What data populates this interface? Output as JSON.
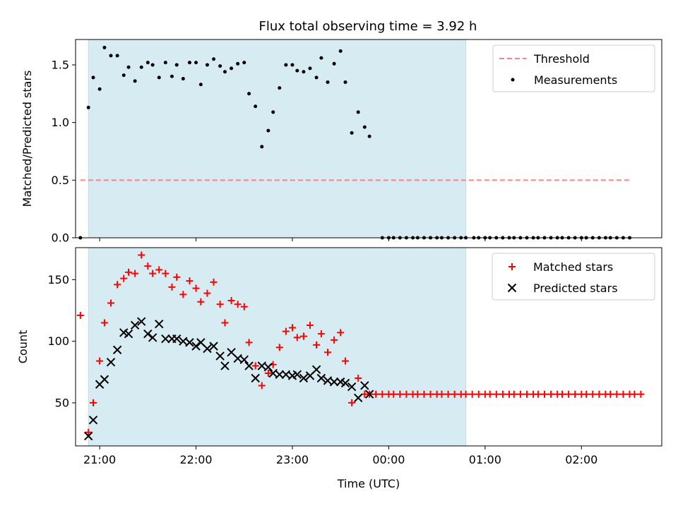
{
  "figure": {
    "title": "Flux total observing time = 3.92 h",
    "colors": {
      "observed_region": "#add8e6",
      "threshold": "#ff7f7f",
      "matched": "#ff0000",
      "predicted": "#000000",
      "measurements": "#000000"
    }
  },
  "chart_data": [
    {
      "type": "scatter",
      "ylabel": "Matched/Predicted stars",
      "xlabel": "",
      "x_axis": "time (UTC, hours after 21:00 on first day)",
      "xlim": [
        "20:45",
        "02:50"
      ],
      "ylim": [
        0,
        1.72
      ],
      "yticks": [
        "0.0",
        "0.5",
        "1.0",
        "1.5"
      ],
      "observed_span": [
        "20:53",
        "00:48"
      ],
      "legend": {
        "placement": "upper right",
        "entries": [
          "Threshold",
          "Measurements"
        ]
      },
      "threshold": {
        "name": "Threshold",
        "value": 0.5,
        "x_range": [
          "20:48",
          "02:30"
        ]
      },
      "series": [
        {
          "name": "Measurements",
          "marker": "dot",
          "times": [
            "20:48",
            "20:53",
            "20:56",
            "21:00",
            "21:03",
            "21:07",
            "21:11",
            "21:15",
            "21:18",
            "21:22",
            "21:26",
            "21:30",
            "21:33",
            "21:37",
            "21:41",
            "21:45",
            "21:48",
            "21:52",
            "21:56",
            "22:00",
            "22:03",
            "22:07",
            "22:11",
            "22:15",
            "22:18",
            "22:22",
            "22:26",
            "22:30",
            "22:33",
            "22:37",
            "22:41",
            "22:45",
            "22:48",
            "22:52",
            "22:56",
            "23:00",
            "23:03",
            "23:07",
            "23:11",
            "23:15",
            "23:18",
            "23:22",
            "23:26",
            "23:30",
            "23:33",
            "23:37",
            "23:41",
            "23:45",
            "23:48",
            "23:52",
            "23:56",
            "00:00",
            "00:03",
            "00:07",
            "00:11",
            "00:15",
            "00:18",
            "00:22",
            "00:26",
            "00:30",
            "00:33",
            "00:37",
            "00:41",
            "00:45",
            "00:48",
            "00:53",
            "00:56",
            "01:00",
            "01:03",
            "01:07",
            "01:11",
            "01:15",
            "01:18",
            "01:22",
            "01:26",
            "01:30",
            "01:33",
            "01:37",
            "01:41",
            "01:45",
            "01:48",
            "01:52",
            "01:56",
            "02:00",
            "02:03",
            "02:07",
            "02:11",
            "02:15",
            "02:18",
            "02:22",
            "02:26",
            "02:30"
          ],
          "values": [
            0.0,
            1.13,
            1.39,
            1.29,
            1.65,
            1.58,
            1.58,
            1.41,
            1.48,
            1.36,
            1.48,
            1.52,
            1.5,
            1.39,
            1.52,
            1.4,
            1.5,
            1.38,
            1.52,
            1.52,
            1.33,
            1.5,
            1.55,
            1.49,
            1.44,
            1.47,
            1.51,
            1.52,
            1.25,
            1.14,
            0.79,
            0.93,
            1.09,
            1.3,
            1.5,
            1.5,
            1.45,
            1.44,
            1.47,
            1.39,
            1.56,
            1.35,
            1.51,
            1.62,
            1.35,
            0.91,
            1.09,
            0.96,
            0.88,
            null,
            0.0,
            0.0,
            0.0,
            0.0,
            0.0,
            0.0,
            0.0,
            0.0,
            0.0,
            0.0,
            0.0,
            0.0,
            0.0,
            0.0,
            0.0,
            0.0,
            0.0,
            0.0,
            0.0,
            0.0,
            0.0,
            0.0,
            0.0,
            0.0,
            0.0,
            0.0,
            0.0,
            0.0,
            0.0,
            0.0,
            0.0,
            0.0,
            0.0,
            0.0,
            0.0,
            0.0,
            0.0,
            0.0,
            0.0,
            0.0,
            0.0,
            0.0
          ]
        }
      ]
    },
    {
      "type": "scatter",
      "ylabel": "Count",
      "xlabel": "Time (UTC)",
      "xlim": [
        "20:45",
        "02:50"
      ],
      "ylim": [
        15,
        176
      ],
      "yticks": [
        "50",
        "100",
        "150"
      ],
      "xticks": [
        "21:00",
        "22:00",
        "23:00",
        "00:00",
        "01:00",
        "02:00"
      ],
      "observed_span": [
        "20:53",
        "00:48"
      ],
      "legend": {
        "placement": "upper right",
        "entries": [
          "Matched stars",
          "Predicted stars"
        ]
      },
      "series": [
        {
          "name": "Matched stars",
          "marker": "plus",
          "times": [
            "20:48",
            "20:53",
            "20:56",
            "21:00",
            "21:03",
            "21:07",
            "21:11",
            "21:15",
            "21:18",
            "21:22",
            "21:26",
            "21:30",
            "21:33",
            "21:37",
            "21:41",
            "21:45",
            "21:48",
            "21:52",
            "21:56",
            "22:00",
            "22:03",
            "22:07",
            "22:11",
            "22:15",
            "22:18",
            "22:22",
            "22:26",
            "22:30",
            "22:33",
            "22:37",
            "22:41",
            "22:45",
            "22:48",
            "22:52",
            "22:56",
            "23:00",
            "23:03",
            "23:07",
            "23:11",
            "23:15",
            "23:18",
            "23:22",
            "23:26",
            "23:30",
            "23:33",
            "23:37",
            "23:41",
            "23:45",
            "23:48",
            "23:52",
            "23:56",
            "00:00",
            "00:03",
            "00:07",
            "00:11",
            "00:15",
            "00:18",
            "00:22",
            "00:26",
            "00:30",
            "00:33",
            "00:37",
            "00:41",
            "00:45",
            "00:48",
            "00:52",
            "00:56",
            "01:00",
            "01:03",
            "01:07",
            "01:11",
            "01:15",
            "01:18",
            "01:22",
            "01:26",
            "01:30",
            "01:33",
            "01:37",
            "01:41",
            "01:45",
            "01:48",
            "01:52",
            "01:56",
            "02:00",
            "02:03",
            "02:07",
            "02:11",
            "02:15",
            "02:18",
            "02:22",
            "02:26",
            "02:30",
            "02:33",
            "02:37"
          ],
          "values": [
            121,
            26,
            50,
            84,
            115,
            131,
            146,
            151,
            156,
            155,
            170,
            161,
            155,
            158,
            155,
            144,
            152,
            138,
            149,
            143,
            132,
            139,
            148,
            130,
            115,
            133,
            130,
            128,
            99,
            80,
            64,
            74,
            81,
            95,
            108,
            111,
            103,
            104,
            113,
            97,
            106,
            91,
            101,
            107,
            84,
            50,
            70,
            57,
            57,
            57,
            57,
            57,
            57,
            57,
            57,
            57,
            57,
            57,
            57,
            57,
            57,
            57,
            57,
            57,
            57,
            57,
            57,
            57,
            57,
            57,
            57,
            57,
            57,
            57,
            57,
            57,
            57,
            57,
            57,
            57,
            57,
            57,
            57,
            57,
            57,
            57,
            57,
            57,
            57,
            57,
            57,
            57,
            57,
            57
          ]
        },
        {
          "name": "Predicted stars",
          "marker": "x",
          "times": [
            "20:53",
            "20:56",
            "21:00",
            "21:03",
            "21:07",
            "21:11",
            "21:15",
            "21:18",
            "21:22",
            "21:26",
            "21:30",
            "21:33",
            "21:37",
            "21:41",
            "21:45",
            "21:48",
            "21:52",
            "21:56",
            "22:00",
            "22:03",
            "22:07",
            "22:11",
            "22:15",
            "22:18",
            "22:22",
            "22:26",
            "22:30",
            "22:33",
            "22:37",
            "22:41",
            "22:45",
            "22:48",
            "22:52",
            "22:56",
            "23:00",
            "23:03",
            "23:07",
            "23:11",
            "23:15",
            "23:18",
            "23:22",
            "23:26",
            "23:30",
            "23:33",
            "23:37",
            "23:41",
            "23:45",
            "23:48"
          ],
          "values": [
            23,
            36,
            65,
            69,
            83,
            93,
            107,
            106,
            113,
            116,
            106,
            103,
            114,
            102,
            102,
            102,
            100,
            99,
            96,
            99,
            94,
            96,
            88,
            80,
            91,
            86,
            85,
            80,
            70,
            80,
            79,
            74,
            73,
            73,
            72,
            73,
            70,
            72,
            77,
            70,
            68,
            67,
            67,
            66,
            63,
            54,
            64,
            57
          ]
        }
      ]
    }
  ]
}
